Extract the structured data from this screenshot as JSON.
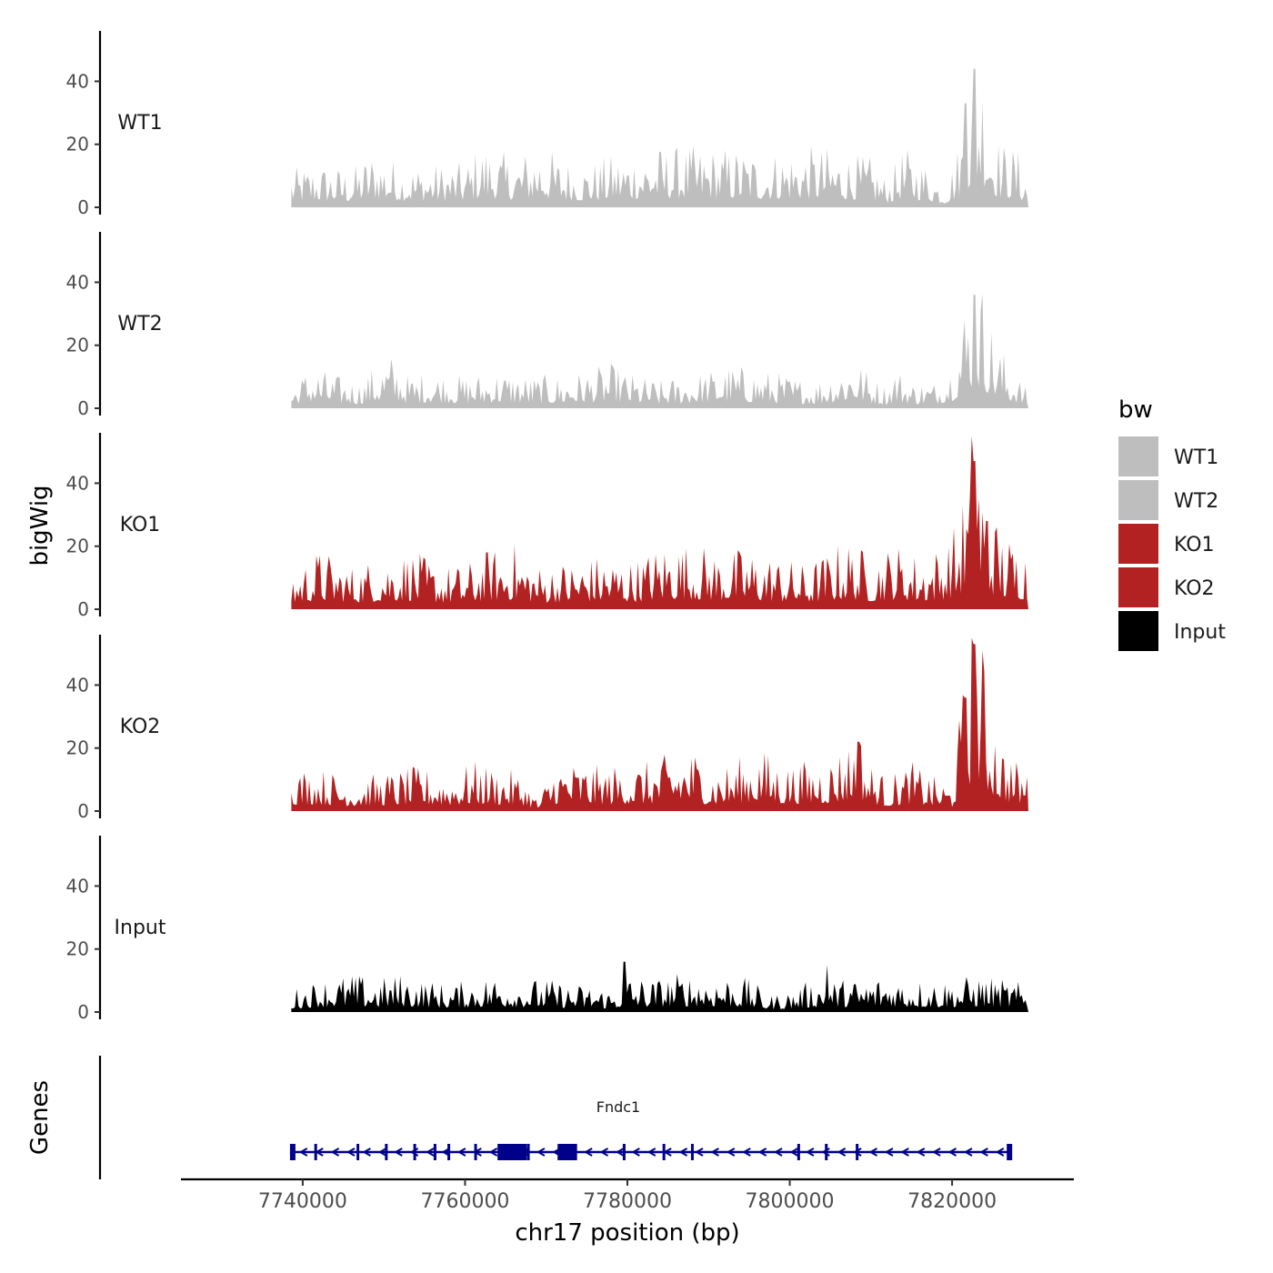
{
  "chart_data": {
    "type": "area",
    "chromosome": "chr17",
    "xlabel": "chr17 position (bp)",
    "ylabel": "bigWig",
    "genes_ylabel": "Genes",
    "xlim": [
      7725000,
      7835000
    ],
    "x_ticks": [
      7740000,
      7760000,
      7780000,
      7800000,
      7820000
    ],
    "x_tick_labels": [
      "7740000",
      "7760000",
      "7780000",
      "7800000",
      "7820000"
    ],
    "ylim": [
      0,
      56
    ],
    "y_ticks": [
      0,
      20,
      40
    ],
    "y_tick_labels": [
      "0",
      "20",
      "40"
    ],
    "grid": false,
    "legend": {
      "title": "bw",
      "position": "right",
      "entries": [
        {
          "label": "WT1",
          "color": "#bebebe"
        },
        {
          "label": "WT2",
          "color": "#bebebe"
        },
        {
          "label": "KO1",
          "color": "#b22222"
        },
        {
          "label": "KO2",
          "color": "#b22222"
        },
        {
          "label": "Input",
          "color": "#000000"
        }
      ]
    },
    "region": [
      7738600,
      7829400
    ],
    "series": [
      {
        "name": "WT1",
        "color": "#bebebe",
        "profile": [
          [
            7738600,
            7
          ],
          [
            7742000,
            8
          ],
          [
            7746000,
            7
          ],
          [
            7749000,
            11
          ],
          [
            7752000,
            8
          ],
          [
            7755000,
            8
          ],
          [
            7760000,
            8
          ],
          [
            7762000,
            12
          ],
          [
            7766000,
            9
          ],
          [
            7769000,
            12
          ],
          [
            7772000,
            9
          ],
          [
            7775000,
            8
          ],
          [
            7779000,
            10
          ],
          [
            7783000,
            11
          ],
          [
            7787000,
            11
          ],
          [
            7790000,
            11
          ],
          [
            7793000,
            11
          ],
          [
            7797000,
            10
          ],
          [
            7800000,
            11
          ],
          [
            7804000,
            11
          ],
          [
            7807000,
            10
          ],
          [
            7810000,
            9
          ],
          [
            7812000,
            5
          ],
          [
            7814000,
            11
          ],
          [
            7817000,
            8
          ],
          [
            7819000,
            4
          ],
          [
            7820500,
            10
          ],
          [
            7821500,
            18
          ],
          [
            7822500,
            26
          ],
          [
            7823300,
            32
          ],
          [
            7824000,
            26
          ],
          [
            7825000,
            16
          ],
          [
            7826000,
            12
          ],
          [
            7828000,
            11
          ],
          [
            7829400,
            5
          ]
        ],
        "peaks": [
          [
            7822800,
            44
          ],
          [
            7821700,
            33
          ]
        ]
      },
      {
        "name": "WT2",
        "color": "#bebebe",
        "profile": [
          [
            7738600,
            4
          ],
          [
            7741000,
            8
          ],
          [
            7744000,
            6
          ],
          [
            7747000,
            5
          ],
          [
            7749000,
            8
          ],
          [
            7751000,
            10
          ],
          [
            7753000,
            6
          ],
          [
            7756000,
            7
          ],
          [
            7760000,
            6
          ],
          [
            7764000,
            7
          ],
          [
            7768000,
            6
          ],
          [
            7772000,
            6
          ],
          [
            7775000,
            7
          ],
          [
            7778000,
            8
          ],
          [
            7781000,
            6
          ],
          [
            7784000,
            5
          ],
          [
            7787000,
            6
          ],
          [
            7790000,
            7
          ],
          [
            7793000,
            8
          ],
          [
            7797000,
            7
          ],
          [
            7800000,
            6
          ],
          [
            7803000,
            5
          ],
          [
            7806000,
            8
          ],
          [
            7808000,
            10
          ],
          [
            7810000,
            6
          ],
          [
            7812000,
            4
          ],
          [
            7813000,
            8
          ],
          [
            7815000,
            5
          ],
          [
            7818000,
            5
          ],
          [
            7820000,
            9
          ],
          [
            7821500,
            20
          ],
          [
            7822300,
            26
          ],
          [
            7823000,
            28
          ],
          [
            7824000,
            22
          ],
          [
            7825000,
            15
          ],
          [
            7826500,
            10
          ],
          [
            7829400,
            3
          ]
        ],
        "peaks": [
          [
            7822800,
            36
          ]
        ]
      },
      {
        "name": "KO1",
        "color": "#b22222",
        "profile": [
          [
            7738600,
            7
          ],
          [
            7742000,
            11
          ],
          [
            7746000,
            8
          ],
          [
            7750000,
            10
          ],
          [
            7753000,
            11
          ],
          [
            7757000,
            8
          ],
          [
            7760000,
            8
          ],
          [
            7763000,
            11
          ],
          [
            7766000,
            12
          ],
          [
            7769000,
            8
          ],
          [
            7773000,
            9
          ],
          [
            7777000,
            10
          ],
          [
            7781000,
            9
          ],
          [
            7785000,
            13
          ],
          [
            7788000,
            12
          ],
          [
            7791000,
            11
          ],
          [
            7795000,
            11
          ],
          [
            7798000,
            10
          ],
          [
            7802000,
            8
          ],
          [
            7805000,
            11
          ],
          [
            7807000,
            13
          ],
          [
            7810000,
            10
          ],
          [
            7813000,
            12
          ],
          [
            7816000,
            10
          ],
          [
            7819000,
            12
          ],
          [
            7820500,
            16
          ],
          [
            7821500,
            22
          ],
          [
            7822200,
            28
          ],
          [
            7822800,
            44
          ],
          [
            7823300,
            34
          ],
          [
            7824000,
            22
          ],
          [
            7825000,
            18
          ],
          [
            7826500,
            14
          ],
          [
            7828000,
            13
          ],
          [
            7829400,
            12
          ]
        ],
        "peaks": [
          [
            7822800,
            47
          ],
          [
            7824200,
            28
          ]
        ]
      },
      {
        "name": "KO2",
        "color": "#b22222",
        "profile": [
          [
            7738600,
            8
          ],
          [
            7742000,
            8
          ],
          [
            7746000,
            6
          ],
          [
            7750000,
            7
          ],
          [
            7754000,
            8
          ],
          [
            7758000,
            7
          ],
          [
            7761000,
            9
          ],
          [
            7764000,
            8
          ],
          [
            7767000,
            7
          ],
          [
            7769000,
            2
          ],
          [
            7771000,
            9
          ],
          [
            7774000,
            9
          ],
          [
            7777000,
            8
          ],
          [
            7780000,
            9
          ],
          [
            7783000,
            9
          ],
          [
            7786000,
            11
          ],
          [
            7788000,
            12
          ],
          [
            7790000,
            8
          ],
          [
            7793000,
            9
          ],
          [
            7796000,
            12
          ],
          [
            7799000,
            9
          ],
          [
            7802000,
            9
          ],
          [
            7805000,
            10
          ],
          [
            7807000,
            13
          ],
          [
            7808500,
            15
          ],
          [
            7810000,
            9
          ],
          [
            7812000,
            6
          ],
          [
            7815000,
            9
          ],
          [
            7818000,
            6
          ],
          [
            7820000,
            5
          ],
          [
            7820800,
            16
          ],
          [
            7821800,
            28
          ],
          [
            7822500,
            38
          ],
          [
            7823300,
            34
          ],
          [
            7824200,
            26
          ],
          [
            7825000,
            20
          ],
          [
            7826500,
            12
          ],
          [
            7828000,
            9
          ],
          [
            7829400,
            8
          ]
        ],
        "peaks": [
          [
            7822800,
            53
          ],
          [
            7821700,
            36
          ],
          [
            7808500,
            22
          ]
        ]
      },
      {
        "name": "Input",
        "color": "#000000",
        "profile": [
          [
            7738600,
            4
          ],
          [
            7742000,
            6
          ],
          [
            7746000,
            7
          ],
          [
            7749000,
            6
          ],
          [
            7752000,
            7
          ],
          [
            7755000,
            6
          ],
          [
            7758000,
            5
          ],
          [
            7761000,
            6
          ],
          [
            7764000,
            7
          ],
          [
            7767000,
            6
          ],
          [
            7770000,
            6
          ],
          [
            7773000,
            5
          ],
          [
            7776000,
            5
          ],
          [
            7778000,
            4
          ],
          [
            7780000,
            7
          ],
          [
            7783000,
            6
          ],
          [
            7786000,
            7
          ],
          [
            7789000,
            7
          ],
          [
            7792000,
            7
          ],
          [
            7795000,
            6
          ],
          [
            7797500,
            3
          ],
          [
            7800000,
            4
          ],
          [
            7803000,
            6
          ],
          [
            7806000,
            6
          ],
          [
            7809000,
            6
          ],
          [
            7812000,
            7
          ],
          [
            7815000,
            6
          ],
          [
            7818000,
            6
          ],
          [
            7821000,
            6
          ],
          [
            7823000,
            7
          ],
          [
            7826000,
            6
          ],
          [
            7829400,
            5
          ]
        ],
        "peaks": [
          [
            7779700,
            16
          ],
          [
            7804600,
            15
          ]
        ]
      }
    ],
    "gene_track": {
      "gene": "Fndc1",
      "color": "#00008b",
      "start": 7738600,
      "end": 7827100,
      "strand": "-",
      "thick_exons": [
        [
          7764000,
          7767600
        ],
        [
          7771400,
          7773800
        ]
      ],
      "small_exons": [
        7738600,
        7741600,
        7746800,
        7750300,
        7753800,
        7756300,
        7758000,
        7761300,
        7767800,
        7779600,
        7784500,
        7788000,
        7801100,
        7804500,
        7808300,
        7826900
      ]
    }
  }
}
